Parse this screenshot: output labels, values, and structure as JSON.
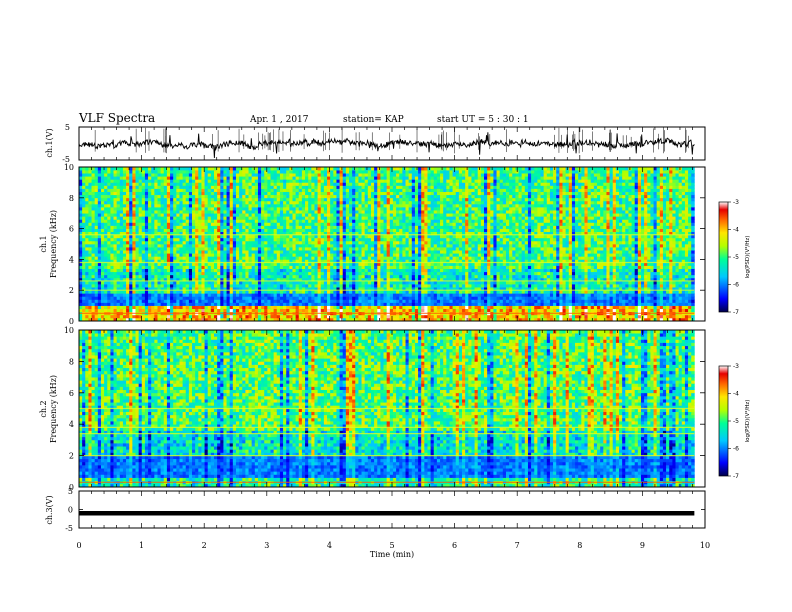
{
  "header": {
    "title": "VLF Spectra",
    "date": "Apr. 1 , 2017",
    "station": "station= KAP",
    "start": "start  UT =  5 : 30 : 1"
  },
  "chart_data": [
    {
      "type": "line",
      "panel": "ch1_waveform",
      "ylabel": "ch.1(V)",
      "ylim": [
        -5,
        5
      ],
      "yticks": [
        "5",
        "-5"
      ],
      "xlim": [
        0,
        10
      ],
      "signal": "noisy waveform around 0 V spanning about -5 to +5 V, 0 to 9.8 min"
    },
    {
      "type": "heatmap",
      "panel": "ch1_spectrogram",
      "ylabel": "Frequency (kHz)",
      "channel_label": "ch.1",
      "ylim": [
        0,
        10
      ],
      "yticks": [
        "0",
        "2",
        "4",
        "6",
        "8",
        "10"
      ],
      "xlim": [
        0,
        10
      ],
      "data_end_min": 9.83,
      "colorbar": {
        "label": "log(PSD)(V²/Hz)",
        "ticks": [
          "-3",
          "-4",
          "-5",
          "-6",
          "-7"
        ],
        "range": [
          -7,
          -3
        ]
      }
    },
    {
      "type": "heatmap",
      "panel": "ch2_spectrogram",
      "ylabel": "Frequency (kHz)",
      "channel_label": "ch.2",
      "ylim": [
        0,
        10
      ],
      "yticks": [
        "0",
        "2",
        "4",
        "6",
        "8",
        "10"
      ],
      "xlim": [
        0,
        10
      ],
      "data_end_min": 9.83,
      "colorbar": {
        "label": "log(PSD)(V²/Hz)",
        "ticks": [
          "-3",
          "-4",
          "-5",
          "-6",
          "-7"
        ],
        "range": [
          -7,
          -3
        ]
      }
    },
    {
      "type": "line",
      "panel": "ch3_waveform",
      "ylabel": "ch.3(V)",
      "ylim": [
        -5,
        5
      ],
      "yticks": [
        "5",
        "0",
        "-5"
      ],
      "xlim": [
        0,
        10
      ],
      "constant_value": -1
    }
  ],
  "xaxis": {
    "label": "Time (min)",
    "ticks": [
      "0",
      "1",
      "2",
      "3",
      "4",
      "5",
      "6",
      "7",
      "8",
      "9",
      "10"
    ]
  },
  "colors": {
    "scale": [
      "#00008c",
      "#0000ff",
      "#00c8ff",
      "#00ffa0",
      "#b4ff00",
      "#ffff00",
      "#ff8000",
      "#e60000",
      "#ffffff"
    ]
  }
}
